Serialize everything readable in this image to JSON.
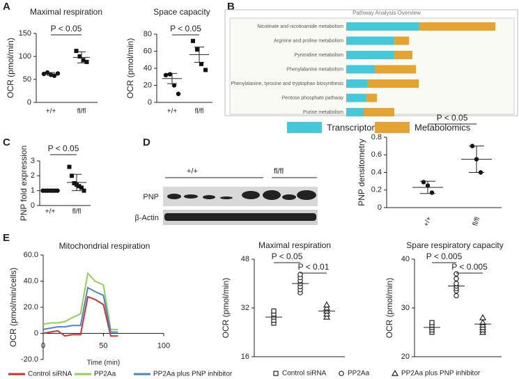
{
  "panels": [
    "A",
    "B",
    "C",
    "D",
    "E"
  ],
  "blot": {
    "lanes": [
      "+/+",
      "fl/fl"
    ],
    "rows": [
      "PNP",
      "β-Actin"
    ]
  },
  "chart_data": [
    {
      "type": "dot",
      "title": "Maximal respiration",
      "ylabel": "OCR (pmol/min)",
      "categories": [
        "+/+",
        "fl/fl"
      ],
      "markers": [
        "circle",
        "square"
      ],
      "filled": true,
      "groups": [
        [
          62,
          65,
          60,
          58,
          63
        ],
        [
          112,
          100,
          92,
          88
        ]
      ],
      "means": [
        62,
        98
      ],
      "errors": [
        3,
        12
      ],
      "ylim": [
        0,
        150
      ],
      "yticks": [
        0,
        50,
        100,
        150
      ],
      "annotations": [
        "P < 0.05"
      ]
    },
    {
      "type": "dot",
      "title": "Space capacity",
      "ylabel": "OCR (pmol/min)",
      "categories": [
        "+/+",
        "fl/fl"
      ],
      "markers": [
        "circle",
        "square"
      ],
      "filled": true,
      "groups": [
        [
          32,
          33,
          20,
          10
        ],
        [
          72,
          62,
          45,
          38
        ]
      ],
      "means": [
        28,
        56
      ],
      "errors": [
        6,
        9
      ],
      "ylim": [
        0,
        80
      ],
      "yticks": [
        0,
        20,
        40,
        60,
        80
      ],
      "annotations": [
        "P < 0.05"
      ]
    },
    {
      "type": "bar",
      "orientation": "horizontal",
      "stacked": true,
      "title": "Pathway Analysis Overview",
      "categories": [
        "Nicotinate and nicotinamide metabolism",
        "Arginine and proline metabolism",
        "Pyrimidine metabolism",
        "Phenylalanine metabolism",
        "Phenylalanine, tyrosine and tryptophan biosynthesis",
        "Pentose phosphate pathway",
        "Purine metabolism"
      ],
      "series": [
        {
          "name": "Transcriptome",
          "color": "#45c8da",
          "values": [
            104,
            68,
            68,
            41,
            30,
            28,
            25
          ]
        },
        {
          "name": "Metabolomics",
          "color": "#e5a432",
          "values": [
            110,
            22,
            27,
            59,
            74,
            16,
            44
          ]
        }
      ]
    },
    {
      "type": "dot",
      "ylabel": "PNP fold expression",
      "categories": [
        "+/+",
        "fl/fl"
      ],
      "markers": [
        "circle",
        "square"
      ],
      "filled": true,
      "groups": [
        [
          1,
          1,
          1,
          1,
          1,
          1,
          1
        ],
        [
          2.6,
          2.0,
          1.5,
          1.4,
          1.3,
          1.2,
          1.0
        ]
      ],
      "means": [
        1,
        1.55
      ],
      "errors": [
        0,
        0.55
      ],
      "ylim": [
        0,
        3
      ],
      "yticks": [
        0,
        1,
        2,
        3
      ],
      "annotations": [
        "P < 0.05"
      ]
    },
    {
      "type": "dot",
      "ylabel": "PNP densitometry",
      "categories": [
        "+/+",
        "fl/fl"
      ],
      "markers": [
        "circle",
        "circle"
      ],
      "filled": true,
      "groups": [
        [
          0.29,
          0.25,
          0.17
        ],
        [
          0.7,
          0.55,
          0.4
        ]
      ],
      "means": [
        0.23,
        0.55
      ],
      "errors": [
        0.07,
        0.15
      ],
      "ylim": [
        0,
        0.8
      ],
      "yticks": [
        0,
        0.2,
        0.4,
        0.6,
        0.8
      ],
      "annotations": [
        "P < 0.05"
      ]
    },
    {
      "type": "line",
      "title": "Mitochondrial respiration",
      "ylabel": "OCR (pmol/min/cells)",
      "xlabel": "Time (min)",
      "x": [
        0,
        6,
        12,
        18,
        24,
        31,
        37,
        43,
        50,
        56,
        62
      ],
      "series": [
        {
          "name": "Control siRNA",
          "color": "#d0312d",
          "values": [
            0,
            1,
            2,
            -2,
            -1,
            -1,
            28,
            26,
            22,
            -2,
            -2
          ]
        },
        {
          "name": "PP2Aa",
          "color": "#8fd14f",
          "values": [
            7,
            8,
            8,
            9,
            12,
            15,
            46,
            40,
            37,
            3,
            3
          ]
        },
        {
          "name": "PP2Aa plus PNP inhibitor",
          "color": "#4a86c8",
          "values": [
            3,
            4,
            5,
            5,
            6,
            6,
            35,
            32,
            29,
            1,
            1
          ]
        }
      ],
      "xlim": [
        0,
        100
      ],
      "xticks": [
        0,
        50,
        100
      ],
      "ylim": [
        -20,
        60
      ],
      "yticks": [
        {
          "value": -20,
          "label": "-20.0"
        },
        0,
        {
          "value": 20,
          "label": "20.0"
        },
        {
          "value": 40,
          "label": "40.0"
        },
        {
          "value": 60,
          "label": "60.0"
        }
      ]
    },
    {
      "type": "dot",
      "title": "Maximal respiration",
      "ylabel": "OCR (pmol/min)",
      "markers": [
        "square",
        "circle",
        "triangle"
      ],
      "filled": false,
      "series": [
        {
          "name": "Control siRNA"
        },
        {
          "name": "PP2Aa"
        },
        {
          "name": "PP2Aa plus PNP inhibitor"
        }
      ],
      "groups": [
        [
          27,
          28,
          29,
          30,
          31
        ],
        [
          37,
          38,
          39,
          40,
          41,
          42,
          43
        ],
        [
          29,
          30,
          31,
          32,
          33
        ]
      ],
      "means": [
        29,
        40,
        31
      ],
      "ylim": [
        16,
        48
      ],
      "yticks": [
        16,
        32,
        48
      ],
      "annotations": [
        "P < 0.05",
        "P < 0.01"
      ]
    },
    {
      "type": "dot",
      "title": "Spare respiratory capacity",
      "ylabel": "OCR (pmol/min)",
      "markers": [
        "square",
        "circle",
        "triangle"
      ],
      "filled": false,
      "groups": [
        [
          25,
          25.5,
          26,
          26.5,
          27
        ],
        [
          32.5,
          33.5,
          34,
          34.5,
          35,
          36,
          37
        ],
        [
          25,
          25.5,
          26,
          26.5,
          27,
          28
        ]
      ],
      "means": [
        26,
        34.5,
        26.7
      ],
      "ylim": [
        20,
        40
      ],
      "yticks": [
        20,
        30,
        40
      ],
      "annotations": [
        "P < 0.005",
        "P < 0.005"
      ]
    }
  ]
}
